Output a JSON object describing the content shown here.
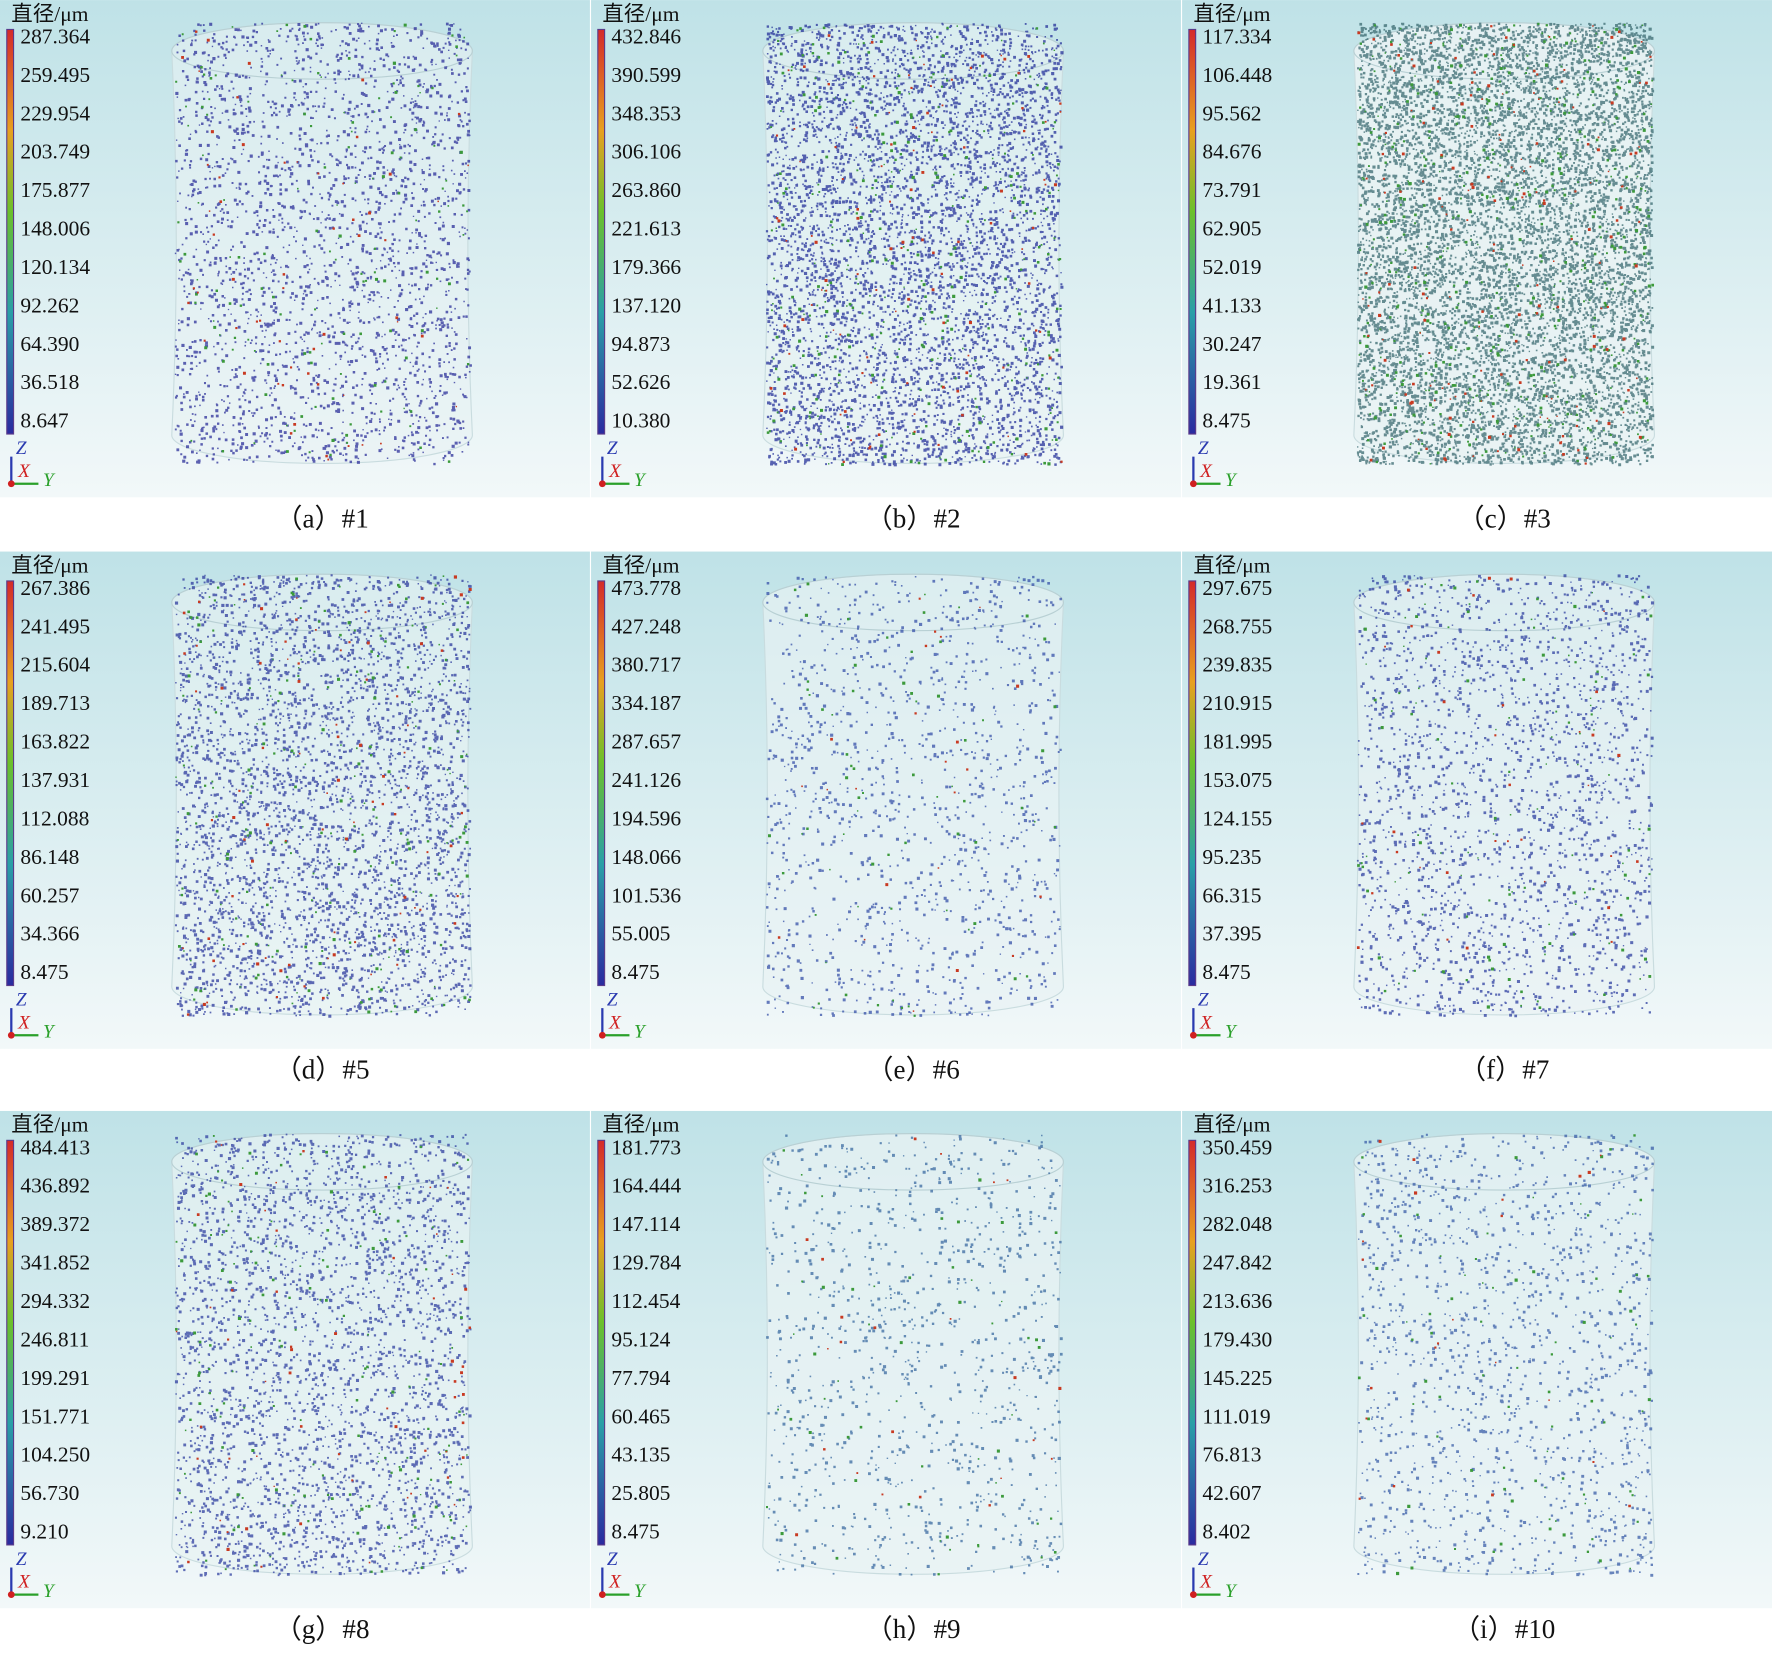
{
  "panels": [
    {
      "caption": "（a）#1",
      "colorbar": {
        "title": "直径/μm",
        "ticks": [
          "287.364",
          "259.495",
          "229.954",
          "203.749",
          "175.877",
          "148.006",
          "120.134",
          "92.262",
          "64.390",
          "36.518",
          "8.647"
        ]
      },
      "axes": {
        "z": "Z",
        "x": "X",
        "y": "Y"
      }
    },
    {
      "caption": "（b）#2",
      "colorbar": {
        "title": "直径/μm",
        "ticks": [
          "432.846",
          "390.599",
          "348.353",
          "306.106",
          "263.860",
          "221.613",
          "179.366",
          "137.120",
          "94.873",
          "52.626",
          "10.380"
        ]
      },
      "axes": {
        "z": "Z",
        "x": "X",
        "y": "Y"
      }
    },
    {
      "caption": "（c）#3",
      "colorbar": {
        "title": "直径/μm",
        "ticks": [
          "117.334",
          "106.448",
          "95.562",
          "84.676",
          "73.791",
          "62.905",
          "52.019",
          "41.133",
          "30.247",
          "19.361",
          "8.475"
        ]
      },
      "axes": {
        "z": "Z",
        "x": "X",
        "y": "Y"
      }
    },
    {
      "caption": "（d）#5",
      "colorbar": {
        "title": "直径/μm",
        "ticks": [
          "267.386",
          "241.495",
          "215.604",
          "189.713",
          "163.822",
          "137.931",
          "112.088",
          "86.148",
          "60.257",
          "34.366",
          "8.475"
        ]
      },
      "axes": {
        "z": "Z",
        "x": "X",
        "y": "Y"
      }
    },
    {
      "caption": "（e）#6",
      "colorbar": {
        "title": "直径/μm",
        "ticks": [
          "473.778",
          "427.248",
          "380.717",
          "334.187",
          "287.657",
          "241.126",
          "194.596",
          "148.066",
          "101.536",
          "55.005",
          "8.475"
        ]
      },
      "axes": {
        "z": "Z",
        "x": "X",
        "y": "Y"
      }
    },
    {
      "caption": "（f）#7",
      "colorbar": {
        "title": "直径/μm",
        "ticks": [
          "297.675",
          "268.755",
          "239.835",
          "210.915",
          "181.995",
          "153.075",
          "124.155",
          "95.235",
          "66.315",
          "37.395",
          "8.475"
        ]
      },
      "axes": {
        "z": "Z",
        "x": "X",
        "y": "Y"
      }
    },
    {
      "caption": "（g）#8",
      "colorbar": {
        "title": "直径/μm",
        "ticks": [
          "484.413",
          "436.892",
          "389.372",
          "341.852",
          "294.332",
          "246.811",
          "199.291",
          "151.771",
          "104.250",
          "56.730",
          "9.210"
        ]
      },
      "axes": {
        "z": "Z",
        "x": "X",
        "y": "Y"
      }
    },
    {
      "caption": "（h）#9",
      "colorbar": {
        "title": "直径/μm",
        "ticks": [
          "181.773",
          "164.444",
          "147.114",
          "129.784",
          "112.454",
          "95.124",
          "77.794",
          "60.465",
          "43.135",
          "25.805",
          "8.475"
        ]
      },
      "axes": {
        "z": "Z",
        "x": "X",
        "y": "Y"
      }
    },
    {
      "caption": "（i）#10",
      "colorbar": {
        "title": "直径/μm",
        "ticks": [
          "350.459",
          "316.253",
          "282.048",
          "247.842",
          "213.636",
          "179.430",
          "145.225",
          "111.019",
          "76.813",
          "42.607",
          "8.402"
        ]
      },
      "axes": {
        "z": "Z",
        "x": "X",
        "y": "Y"
      }
    }
  ]
}
